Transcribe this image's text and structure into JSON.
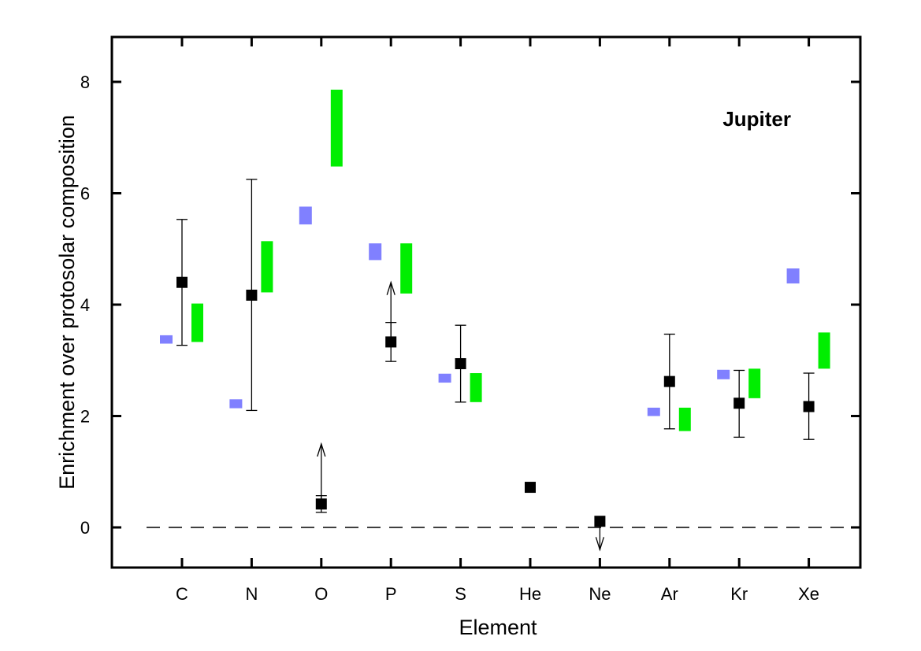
{
  "chart_data": {
    "type": "scatter",
    "title": "",
    "xlabel": "Element",
    "ylabel": "Enrichment over protosolar composition",
    "ylim": [
      -0.75,
      8.75
    ],
    "yticks": [
      0,
      2,
      4,
      6,
      8
    ],
    "categories": [
      "C",
      "N",
      "O",
      "P",
      "S",
      "He",
      "Ne",
      "Ar",
      "Kr",
      "Xe"
    ],
    "annotation": "Jupiter",
    "reference_line": {
      "y": 0,
      "style": "dashed"
    },
    "colors": {
      "measured": "#000000",
      "model_blue": "#8080ff",
      "model_green": "#00ee00"
    },
    "series": [
      {
        "kind": "measured",
        "points": [
          {
            "category": "C",
            "y": 4.4,
            "err_low": 3.27,
            "err_high": 5.53
          },
          {
            "category": "N",
            "y": 4.17,
            "err_low": 2.1,
            "err_high": 6.25
          },
          {
            "category": "O",
            "y": 0.42,
            "err_low": 0.27,
            "err_high": 0.57,
            "arrow": "up",
            "arrow_to": 1.5
          },
          {
            "category": "P",
            "y": 3.33,
            "err_low": 2.98,
            "err_high": 3.68,
            "arrow": "up",
            "arrow_to": 4.4
          },
          {
            "category": "S",
            "y": 2.94,
            "err_low": 2.25,
            "err_high": 3.63
          },
          {
            "category": "He",
            "y": 0.72
          },
          {
            "category": "Ne",
            "y": 0.11,
            "arrow": "down",
            "arrow_to": -0.4
          },
          {
            "category": "Ar",
            "y": 2.62,
            "err_low": 1.77,
            "err_high": 3.47
          },
          {
            "category": "Kr",
            "y": 2.23,
            "err_low": 1.62,
            "err_high": 2.82
          },
          {
            "category": "Xe",
            "y": 2.17,
            "err_low": 1.58,
            "err_high": 2.77
          }
        ]
      },
      {
        "kind": "model_blue",
        "bars": [
          {
            "category": "C",
            "low": 3.3,
            "high": 3.45
          },
          {
            "category": "N",
            "low": 2.14,
            "high": 2.3
          },
          {
            "category": "O",
            "low": 5.44,
            "high": 5.76
          },
          {
            "category": "P",
            "low": 4.8,
            "high": 5.1
          },
          {
            "category": "S",
            "low": 2.6,
            "high": 2.76
          },
          {
            "category": "Ar",
            "low": 2.0,
            "high": 2.15
          },
          {
            "category": "Kr",
            "low": 2.66,
            "high": 2.83
          },
          {
            "category": "Xe",
            "low": 4.38,
            "high": 4.65
          }
        ]
      },
      {
        "kind": "model_green",
        "bars": [
          {
            "category": "C",
            "low": 3.33,
            "high": 4.02
          },
          {
            "category": "N",
            "low": 4.22,
            "high": 5.14
          },
          {
            "category": "O",
            "low": 6.48,
            "high": 7.86
          },
          {
            "category": "P",
            "low": 4.2,
            "high": 5.1
          },
          {
            "category": "S",
            "low": 2.25,
            "high": 2.77
          },
          {
            "category": "Ar",
            "low": 1.73,
            "high": 2.15
          },
          {
            "category": "Kr",
            "low": 2.32,
            "high": 2.85
          },
          {
            "category": "Xe",
            "low": 2.85,
            "high": 3.5
          }
        ]
      }
    ]
  }
}
